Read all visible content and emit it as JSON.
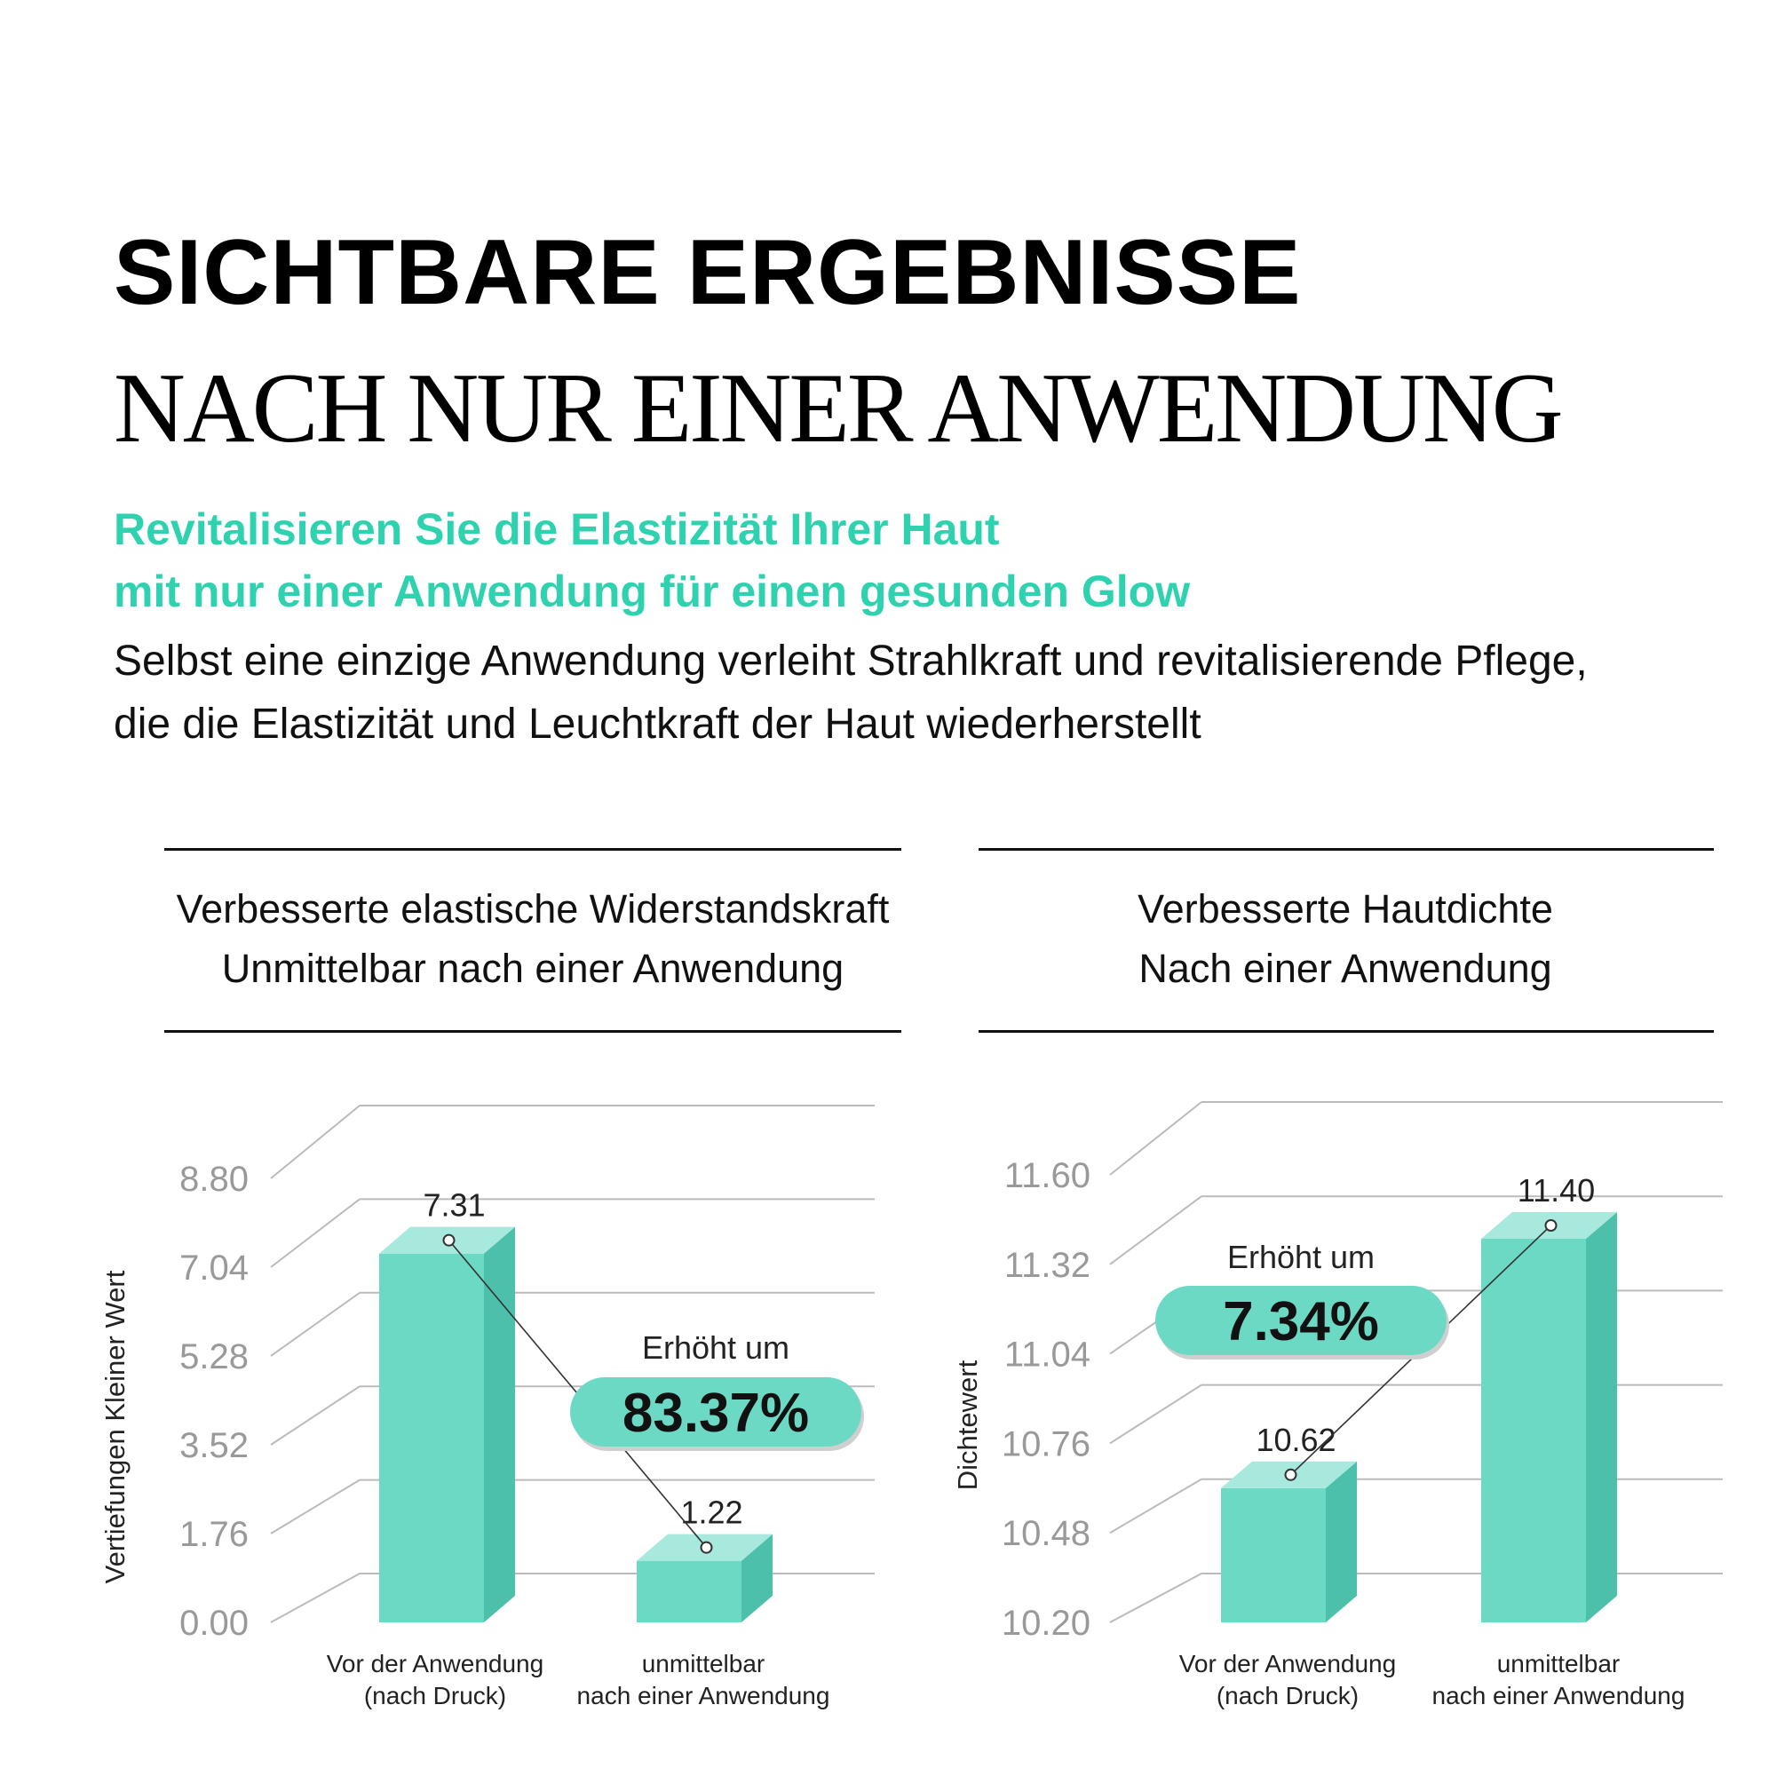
{
  "header": {
    "title_line1": "SICHTBARE ERGEBNISSE",
    "title_line2": "NACH NUR EINER ANWENDUNG",
    "highlight_line1": "Revitalisieren Sie die Elastizität Ihrer Haut",
    "highlight_line2": "mit nur einer Anwendung für einen gesunden Glow",
    "body_line1": "Selbst eine einzige Anwendung verleiht Strahlkraft und revitalisierende Pflege,",
    "body_line2": "die die Elastizität und Leuchtkraft der Haut wiederherstellt"
  },
  "colors": {
    "accent": "#2fd2ae",
    "bar_front": "#6cd9c5",
    "bar_top": "#a8e9dd",
    "bar_side": "#4cc0aa",
    "grid": "#bbbbbb",
    "tick": "#999999"
  },
  "chart_data": [
    {
      "type": "bar",
      "title": [
        "Verbesserte elastische Widerstandskraft",
        "Unmittelbar nach einer Anwendung"
      ],
      "ylabel": "Vertiefungen Kleiner Wert",
      "yticks": [
        "0.00",
        "1.76",
        "3.52",
        "5.28",
        "7.04",
        "8.80"
      ],
      "ylim": [
        0,
        8.8
      ],
      "categories": [
        [
          "Vor der Anwendung",
          "(nach Druck)"
        ],
        [
          "unmittelbar",
          "nach einer Anwendung"
        ]
      ],
      "values": [
        7.31,
        1.22
      ],
      "value_labels": [
        "7.31",
        "1.22"
      ],
      "callout": {
        "label": "Erhöht um",
        "value": "83.37%"
      }
    },
    {
      "type": "bar",
      "title": [
        "Verbesserte Hautdichte",
        "Nach einer Anwendung"
      ],
      "ylabel": "Dichtewert",
      "yticks": [
        "10.20",
        "10.48",
        "10.76",
        "11.04",
        "11.32",
        "11.60"
      ],
      "ylim": [
        10.2,
        11.6
      ],
      "categories": [
        [
          "Vor der Anwendung",
          "(nach Druck)"
        ],
        [
          "unmittelbar",
          "nach einer Anwendung"
        ]
      ],
      "values": [
        10.62,
        11.4
      ],
      "value_labels": [
        "10.62",
        "11.40"
      ],
      "callout": {
        "label": "Erhöht um",
        "value": "7.34%"
      }
    }
  ]
}
